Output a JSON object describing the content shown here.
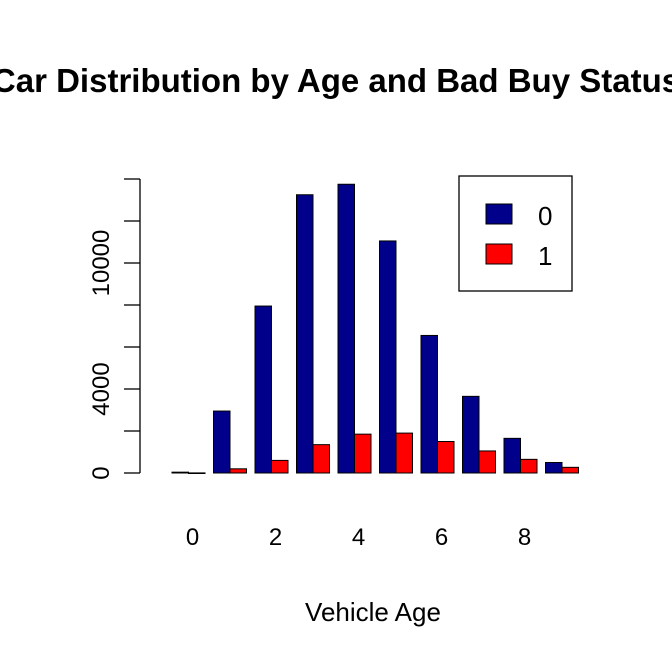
{
  "chart_data": {
    "type": "bar",
    "title": "Car Distribution by Age and Bad Buy Status",
    "xlabel": "Vehicle Age",
    "ylabel": "",
    "categories": [
      "0",
      "1",
      "2",
      "3",
      "4",
      "5",
      "6",
      "7",
      "8",
      "9"
    ],
    "x_tick_labels": [
      "0",
      "2",
      "4",
      "6",
      "8"
    ],
    "y_tick_labels": [
      "0",
      "4000",
      "10000"
    ],
    "ylim": [
      0,
      14000
    ],
    "legend_position": "top-right",
    "grid": false,
    "series": [
      {
        "name": "0",
        "color": "#00008B",
        "values": [
          40,
          2950,
          7950,
          13250,
          13750,
          11050,
          6550,
          3650,
          1650,
          500
        ]
      },
      {
        "name": "1",
        "color": "#FF0000",
        "values": [
          5,
          200,
          600,
          1350,
          1850,
          1900,
          1500,
          1050,
          650,
          270
        ]
      }
    ]
  }
}
